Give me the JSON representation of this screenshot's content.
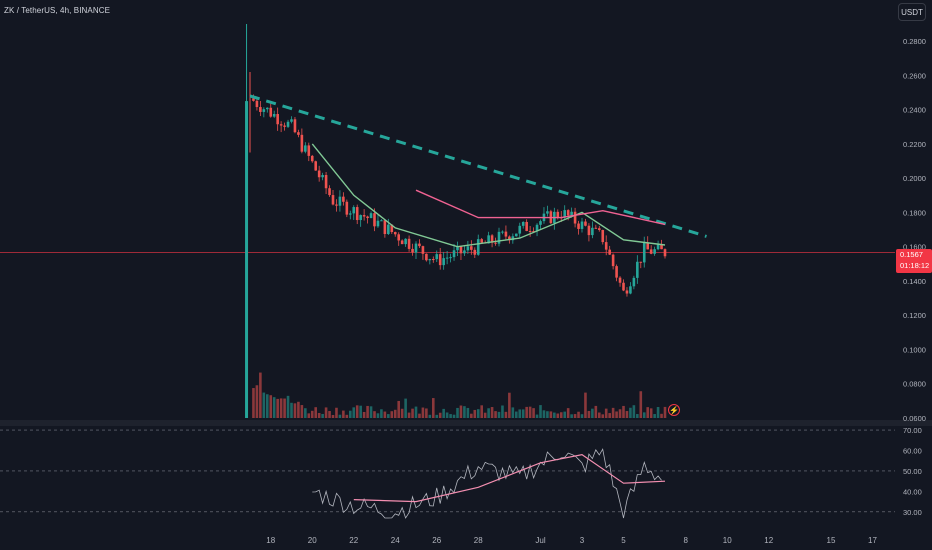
{
  "header": {
    "legend": "ZK / TetherUS, 4h, BINANCE",
    "currency_button": "USDT"
  },
  "price_tag": {
    "price": "0.1567",
    "countdown": "01:18:12"
  },
  "colors": {
    "background": "#131722",
    "up": "#26a69a",
    "down": "#ef5350",
    "fast_ma": "#81c995",
    "slow_ma": "#f06292",
    "trendline": "#26a69a",
    "rsi": "#b2b5be",
    "rsi_ma": "#f48fb1"
  },
  "icons": {
    "alert": "lightning-bolt-icon"
  },
  "chart_data": [
    {
      "type": "candlestick",
      "title": "ZK / TetherUS, 4h, BINANCE",
      "x_ticks": [
        "18",
        "20",
        "22",
        "24",
        "26",
        "28",
        "Jul",
        "3",
        "5",
        "8",
        "10",
        "12",
        "15",
        "17"
      ],
      "y_ticks": [
        "0.2800",
        "0.2600",
        "0.2400",
        "0.2200",
        "0.2000",
        "0.1800",
        "0.1600",
        "0.1400",
        "0.1200",
        "0.1000",
        "0.0800",
        "0.0600"
      ],
      "ylim": [
        0.06,
        0.29
      ],
      "last_price": 0.1567,
      "key_points": [
        {
          "date": "17 Jun",
          "price": 0.2466
        },
        {
          "date": "19 Jun",
          "price": 0.23
        },
        {
          "date": "21 Jun",
          "price": 0.187
        },
        {
          "date": "23 Jun",
          "price": 0.175
        },
        {
          "date": "26 Jun",
          "price": 0.152
        },
        {
          "date": "28 Jun",
          "price": 0.16
        },
        {
          "date": "02 Jul",
          "price": 0.18
        },
        {
          "date": "04 Jul",
          "price": 0.165
        },
        {
          "date": "05 Jul",
          "price": 0.133
        },
        {
          "date": "06 Jul",
          "price": 0.158
        },
        {
          "date": "07 Jul",
          "price": 0.1567
        }
      ],
      "trendline": [
        {
          "date": "17 Jun",
          "price": 0.248
        },
        {
          "date": "09 Jul",
          "price": 0.166
        }
      ],
      "fast_ma": [
        {
          "date": "20 Jun",
          "price": 0.22
        },
        {
          "date": "22 Jun",
          "price": 0.19
        },
        {
          "date": "24 Jun",
          "price": 0.171
        },
        {
          "date": "27 Jun",
          "price": 0.16
        },
        {
          "date": "30 Jun",
          "price": 0.165
        },
        {
          "date": "03 Jul",
          "price": 0.18
        },
        {
          "date": "05 Jul",
          "price": 0.164
        },
        {
          "date": "07 Jul",
          "price": 0.161
        }
      ],
      "slow_ma": [
        {
          "date": "25 Jun",
          "price": 0.193
        },
        {
          "date": "28 Jun",
          "price": 0.177
        },
        {
          "date": "02 Jul",
          "price": 0.177
        },
        {
          "date": "04 Jul",
          "price": 0.181
        },
        {
          "date": "07 Jul",
          "price": 0.173
        }
      ]
    },
    {
      "type": "line",
      "y_ticks": [
        "70.00",
        "60.00",
        "50.00",
        "40.00",
        "30.00"
      ],
      "ylim": [
        26,
        72
      ],
      "levels": [
        70,
        50,
        30
      ],
      "rsi": [
        {
          "date": "20 Jun",
          "value": 40
        },
        {
          "date": "22 Jun",
          "value": 33
        },
        {
          "date": "24 Jun",
          "value": 30
        },
        {
          "date": "26 Jun",
          "value": 37
        },
        {
          "date": "28 Jun",
          "value": 52
        },
        {
          "date": "30 Jun",
          "value": 47
        },
        {
          "date": "02 Jul",
          "value": 60
        },
        {
          "date": "03 Jul",
          "value": 52
        },
        {
          "date": "04 Jul",
          "value": 60
        },
        {
          "date": "05 Jul",
          "value": 29
        },
        {
          "date": "06 Jul",
          "value": 53
        },
        {
          "date": "07 Jul",
          "value": 45
        }
      ],
      "rsi_ma": [
        {
          "date": "22 Jun",
          "value": 36
        },
        {
          "date": "25 Jun",
          "value": 35
        },
        {
          "date": "28 Jun",
          "value": 42
        },
        {
          "date": "01 Jul",
          "value": 54
        },
        {
          "date": "03 Jul",
          "value": 58
        },
        {
          "date": "05 Jul",
          "value": 44
        },
        {
          "date": "07 Jul",
          "value": 45
        }
      ]
    }
  ]
}
